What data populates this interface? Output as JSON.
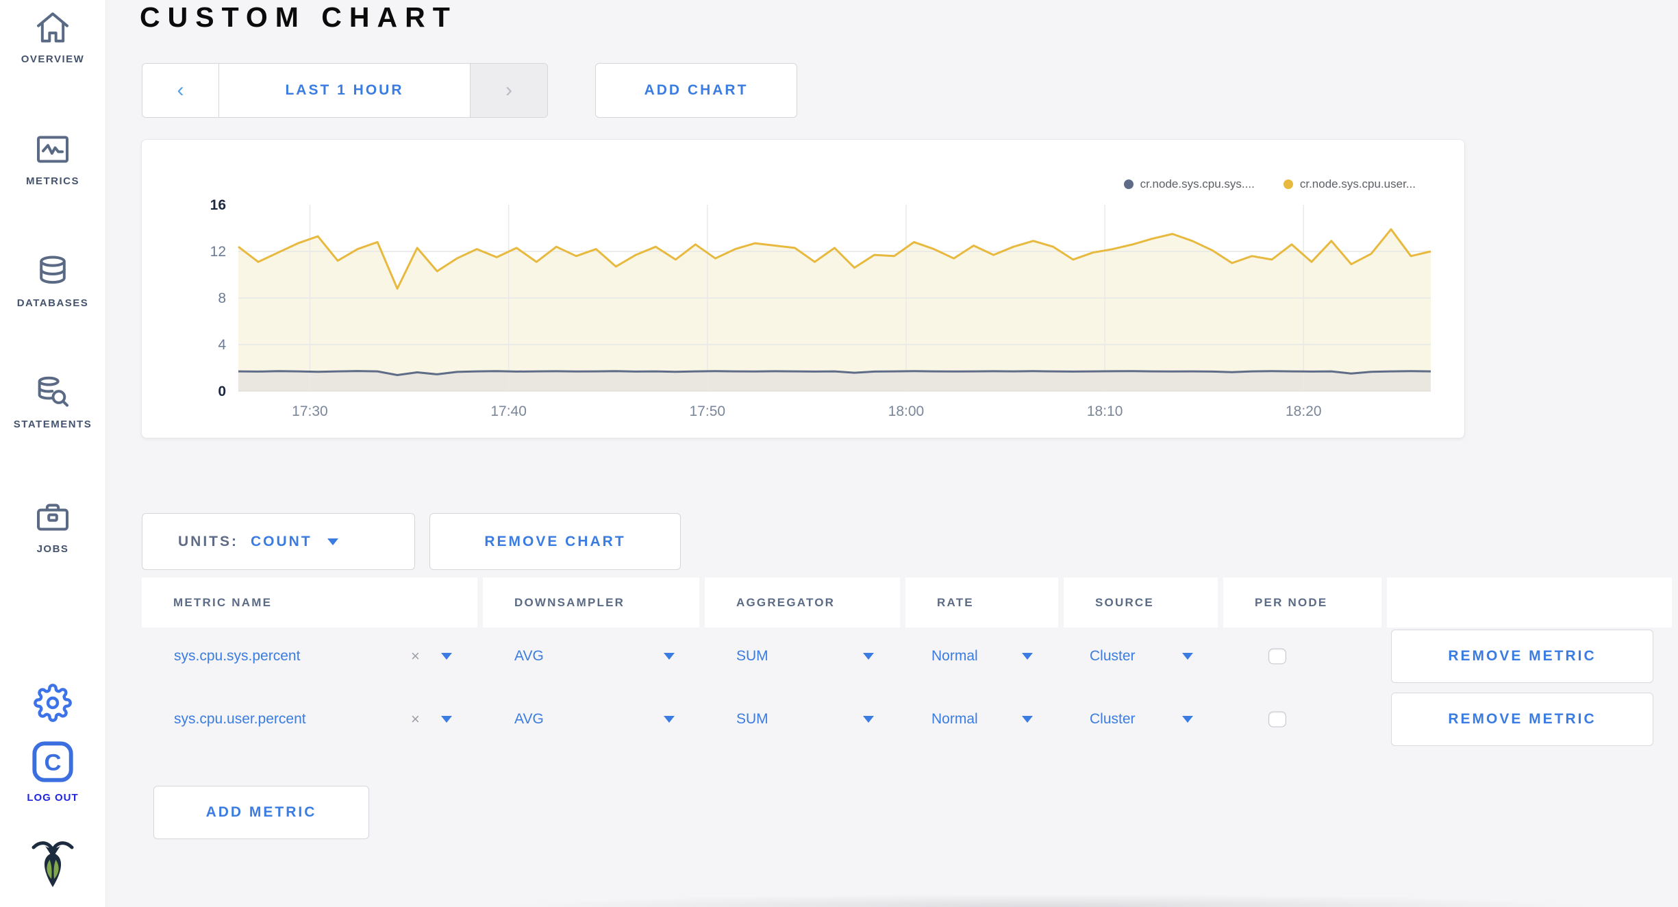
{
  "colors": {
    "accent_blue": "#3a7ce1",
    "series_sys": "#5f6c87",
    "series_user": "#e8b93f",
    "sys_fill": "#eae7e1",
    "user_fill": "#faf6e6",
    "logout_blue": "#2125e0"
  },
  "page": {
    "title": "CUSTOM CHART"
  },
  "sidebar": {
    "items": [
      {
        "label": "OVERVIEW"
      },
      {
        "label": "METRICS"
      },
      {
        "label": "DATABASES"
      },
      {
        "label": "STATEMENTS"
      },
      {
        "label": "JOBS"
      }
    ],
    "logout_label": "LOG OUT"
  },
  "toolbar": {
    "prev_icon": "‹",
    "time_range_label": "LAST 1 HOUR",
    "next_icon": "›",
    "add_chart_label": "ADD CHART"
  },
  "chart_controls": {
    "units_label": "UNITS:",
    "units_value": "COUNT",
    "remove_chart_label": "REMOVE CHART",
    "add_metric_label": "ADD METRIC"
  },
  "table": {
    "headers": [
      "METRIC NAME",
      "DOWNSAMPLER",
      "AGGREGATOR",
      "RATE",
      "SOURCE",
      "PER NODE",
      ""
    ],
    "clear_icon": "×",
    "rows": [
      {
        "metric": "sys.cpu.sys.percent",
        "downsampler": "AVG",
        "aggregator": "SUM",
        "rate": "Normal",
        "source": "Cluster",
        "per_node": false,
        "remove_label": "REMOVE METRIC"
      },
      {
        "metric": "sys.cpu.user.percent",
        "downsampler": "AVG",
        "aggregator": "SUM",
        "rate": "Normal",
        "source": "Cluster",
        "per_node": false,
        "remove_label": "REMOVE METRIC"
      }
    ]
  },
  "chart_data": {
    "type": "line",
    "title": "",
    "xlabel": "",
    "ylabel": "",
    "ylim": [
      0,
      16
    ],
    "y_ticks": [
      0,
      4,
      8,
      12,
      16
    ],
    "x_ticks": [
      "17:30",
      "17:40",
      "17:50",
      "18:00",
      "18:10",
      "18:20"
    ],
    "x_tick_minutes": [
      3.6,
      13.6,
      23.6,
      33.6,
      43.6,
      53.6
    ],
    "x_total_minutes": 60,
    "grid": true,
    "legend_position": "top-right",
    "legend": [
      {
        "label": "cr.node.sys.cpu.sys....",
        "color": "#5f6c87"
      },
      {
        "label": "cr.node.sys.cpu.user...",
        "color": "#e8b93f"
      }
    ],
    "series": [
      {
        "name": "cr.node.sys.cpu.sys.percent",
        "color": "#5f6c87",
        "fill": "#eae7e1",
        "values": [
          1.7,
          1.68,
          1.72,
          1.7,
          1.66,
          1.7,
          1.73,
          1.7,
          1.38,
          1.62,
          1.45,
          1.65,
          1.7,
          1.72,
          1.68,
          1.7,
          1.71,
          1.69,
          1.7,
          1.72,
          1.68,
          1.7,
          1.66,
          1.7,
          1.72,
          1.7,
          1.69,
          1.71,
          1.7,
          1.68,
          1.7,
          1.58,
          1.68,
          1.7,
          1.72,
          1.7,
          1.69,
          1.7,
          1.71,
          1.7,
          1.72,
          1.7,
          1.68,
          1.7,
          1.71,
          1.72,
          1.7,
          1.69,
          1.7,
          1.68,
          1.63,
          1.7,
          1.72,
          1.7,
          1.68,
          1.7,
          1.52,
          1.66,
          1.7,
          1.72,
          1.7
        ]
      },
      {
        "name": "cr.node.sys.cpu.user.percent",
        "color": "#e8b93f",
        "fill": "#faf6e6",
        "values": [
          12.4,
          11.1,
          11.9,
          12.7,
          13.3,
          11.2,
          12.2,
          12.8,
          8.8,
          12.3,
          10.3,
          11.4,
          12.2,
          11.5,
          12.3,
          11.1,
          12.4,
          11.6,
          12.2,
          10.7,
          11.7,
          12.4,
          11.3,
          12.6,
          11.4,
          12.2,
          12.7,
          12.5,
          12.3,
          11.1,
          12.3,
          10.6,
          11.7,
          11.6,
          12.8,
          12.2,
          11.4,
          12.5,
          11.7,
          12.4,
          12.9,
          12.4,
          11.3,
          11.9,
          12.2,
          12.6,
          13.1,
          13.5,
          12.9,
          12.1,
          11.0,
          11.6,
          11.3,
          12.6,
          11.1,
          12.9,
          10.9,
          11.8,
          13.9,
          11.6,
          12.0
        ]
      }
    ]
  }
}
